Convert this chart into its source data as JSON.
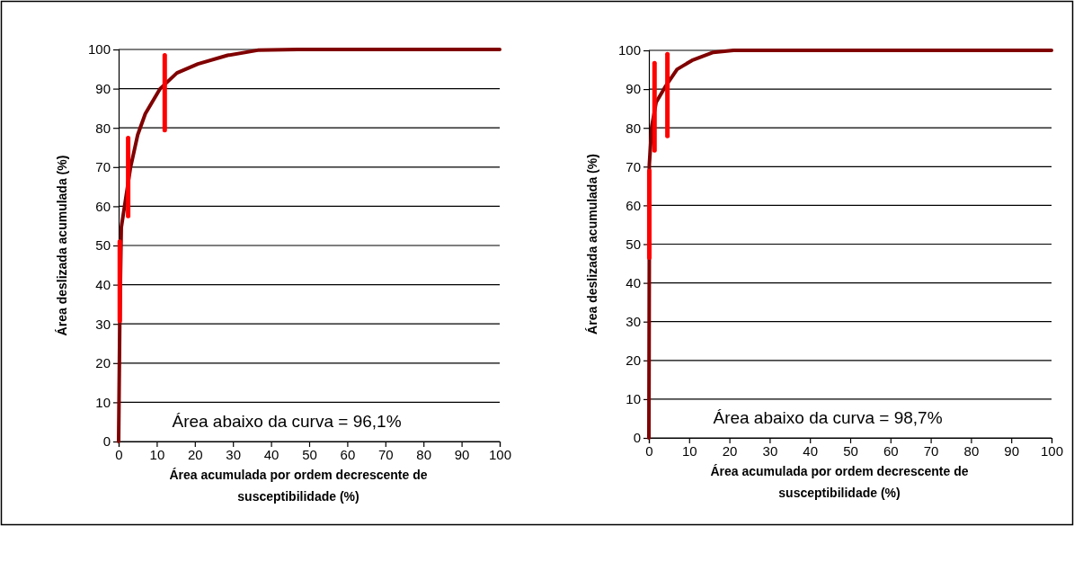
{
  "chart_data": [
    {
      "type": "line",
      "xlabel": "Área  acumulada por ordem decrescente de susceptibilidade (%)",
      "ylabel": "Área deslizada acumulada (%)",
      "annotations": [
        "Área abaixo da curva = 96,1%"
      ],
      "xlim": [
        0,
        100
      ],
      "ylim": [
        0,
        100
      ],
      "xticks": [
        0,
        10,
        20,
        30,
        40,
        50,
        60,
        70,
        80,
        90,
        100
      ],
      "yticks": [
        0,
        10,
        20,
        30,
        40,
        50,
        60,
        70,
        80,
        90,
        100
      ],
      "grid": "y",
      "series": [
        {
          "color": "#800000",
          "x": [
            0,
            0.3,
            0.7,
            3.1,
            5,
            7,
            10.9,
            15.3,
            20.8,
            28.6,
            36.5,
            47,
            100
          ],
          "values": [
            0,
            30.8,
            54.6,
            69.8,
            78.2,
            83.6,
            90,
            94,
            96.3,
            98.5,
            99.8,
            100,
            100
          ]
        },
        {
          "color": "#ff0000",
          "x": [
            0.3,
            0.3
          ],
          "values": [
            30.8,
            51
          ]
        },
        {
          "color": "#ff0000",
          "x": [
            2.5,
            2.5
          ],
          "values": [
            57.5,
            77.4
          ]
        },
        {
          "color": "#ff0000",
          "x": [
            12.1,
            12.1
          ],
          "values": [
            79.4,
            98.5
          ]
        }
      ]
    },
    {
      "type": "line",
      "xlabel": "Área  acumulada por ordem decrescente de susceptibilidade (%)",
      "ylabel": "Área deslizada acumulada (%)",
      "annotations": [
        "Área abaixo da curva = 98,7%"
      ],
      "xlim": [
        0,
        100
      ],
      "ylim": [
        0,
        100
      ],
      "xticks": [
        0,
        10,
        20,
        30,
        40,
        50,
        60,
        70,
        80,
        90,
        100
      ],
      "yticks": [
        0,
        10,
        20,
        30,
        40,
        50,
        60,
        70,
        80,
        90,
        100
      ],
      "grid": "y",
      "series": [
        {
          "color": "#800000",
          "x": [
            0,
            0.1,
            0.1,
            0.7,
            1.8,
            4,
            7,
            10.7,
            16,
            21,
            100
          ],
          "values": [
            0,
            45.7,
            70.4,
            80.3,
            86.6,
            90.5,
            95.1,
            97.4,
            99.5,
            100,
            100
          ]
        },
        {
          "color": "#ff0000",
          "x": [
            0.1,
            0.1
          ],
          "values": [
            46.5,
            68.9
          ]
        },
        {
          "color": "#ff0000",
          "x": [
            1.4,
            1.4
          ],
          "values": [
            74.2,
            96.7
          ]
        },
        {
          "color": "#ff0000",
          "x": [
            4.6,
            4.6
          ],
          "values": [
            77.9,
            99
          ]
        }
      ]
    }
  ]
}
